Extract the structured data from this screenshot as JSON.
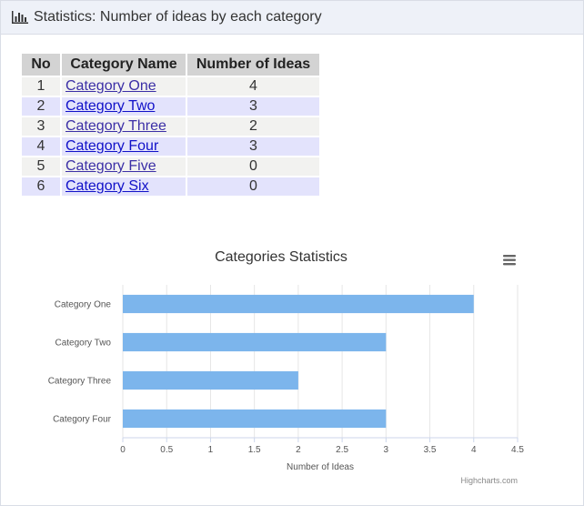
{
  "header": {
    "title": "Statistics: Number of ideas by each category",
    "icon": "bar-chart-icon"
  },
  "table": {
    "columns": [
      "No",
      "Category Name",
      "Number of Ideas"
    ],
    "rows": [
      {
        "no": "1",
        "name": "Category One",
        "count": "4"
      },
      {
        "no": "2",
        "name": "Category Two",
        "count": "3"
      },
      {
        "no": "3",
        "name": "Category Three",
        "count": "2"
      },
      {
        "no": "4",
        "name": "Category Four",
        "count": "3"
      },
      {
        "no": "5",
        "name": "Category Five",
        "count": "0"
      },
      {
        "no": "6",
        "name": "Category Six",
        "count": "0"
      }
    ]
  },
  "chart_data": {
    "type": "bar",
    "orientation": "horizontal",
    "title": "Categories Statistics",
    "categories": [
      "Category One",
      "Category Two",
      "Category Three",
      "Category Four"
    ],
    "values": [
      4,
      3,
      2,
      3
    ],
    "xlabel": "Number of Ideas",
    "xlim": [
      0,
      4.5
    ],
    "ticks": [
      "0",
      "0.5",
      "1",
      "1.5",
      "2",
      "2.5",
      "3",
      "3.5",
      "4",
      "4.5"
    ],
    "grid": true,
    "legend": false,
    "bar_color": "#7cb5ec",
    "credits": "Highcharts.com",
    "menu_icon": "hamburger-menu-icon"
  }
}
